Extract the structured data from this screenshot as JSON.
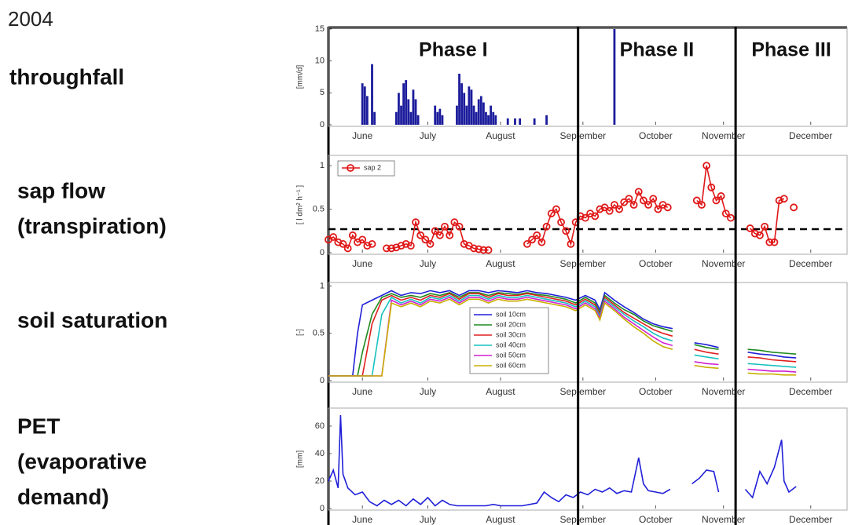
{
  "year": "2004",
  "row_labels": [
    [
      "throughfall"
    ],
    [
      "sap flow",
      "(transpiration)"
    ],
    [
      "soil saturation"
    ],
    [
      "PET",
      "(evaporative",
      "demand)"
    ]
  ],
  "phases": [
    "Phase I",
    "Phase II",
    "Phase III"
  ],
  "phase_boundaries": [
    255,
    320
  ],
  "chart_data": [
    {
      "type": "bar",
      "y_label": "[mm/d]",
      "color": "#1c1c9c",
      "xlim": [
        152,
        366
      ],
      "ylim": [
        0,
        15
      ],
      "yticks": [
        0,
        5,
        10,
        15
      ],
      "xticks": [
        {
          "value": 166,
          "label": "June"
        },
        {
          "value": 193,
          "label": "July"
        },
        {
          "value": 223,
          "label": "August"
        },
        {
          "value": 257,
          "label": "September"
        },
        {
          "value": 287,
          "label": "October"
        },
        {
          "value": 315,
          "label": "November"
        },
        {
          "value": 351,
          "label": "December"
        }
      ],
      "x": [
        166,
        167,
        168,
        170,
        171,
        180,
        181,
        182,
        183,
        184,
        185,
        186,
        187,
        188,
        189,
        196,
        197,
        198,
        199,
        205,
        206,
        207,
        208,
        209,
        210,
        211,
        212,
        213,
        214,
        215,
        216,
        217,
        218,
        219,
        220,
        221,
        226,
        229,
        231,
        237,
        242,
        270
      ],
      "values": [
        6.5,
        6,
        4.5,
        9.5,
        2,
        2,
        5,
        3,
        6.5,
        7,
        4,
        2,
        5.5,
        4,
        1.5,
        3,
        2,
        2.5,
        1.5,
        3,
        8,
        6.5,
        5,
        3,
        6,
        5.5,
        3,
        2,
        4,
        4.5,
        3.5,
        2,
        1.5,
        3,
        2,
        1.5,
        1,
        1,
        1,
        1,
        1.5,
        15
      ]
    },
    {
      "type": "line",
      "y_label": "[ l dm² h⁻¹ ]",
      "markers": true,
      "legend": "upper left",
      "threshold": 0.27,
      "xlim": [
        152,
        366
      ],
      "ylim": [
        0,
        1.1
      ],
      "yticks": [
        0,
        0.5,
        1
      ],
      "xticks": [
        {
          "value": 166,
          "label": "June"
        },
        {
          "value": 193,
          "label": "July"
        },
        {
          "value": 223,
          "label": "August"
        },
        {
          "value": 257,
          "label": "September"
        },
        {
          "value": 287,
          "label": "October"
        },
        {
          "value": 315,
          "label": "November"
        },
        {
          "value": 351,
          "label": "December"
        }
      ],
      "x": [
        152,
        154,
        156,
        158,
        160,
        162,
        164,
        166,
        168,
        170,
        172,
        176,
        178,
        180,
        182,
        184,
        186,
        188,
        190,
        192,
        194,
        196,
        198,
        200,
        202,
        204,
        206,
        208,
        210,
        212,
        214,
        216,
        218,
        225,
        234,
        236,
        238,
        240,
        242,
        244,
        246,
        248,
        250,
        252,
        254,
        256,
        258,
        260,
        262,
        264,
        266,
        268,
        270,
        272,
        274,
        276,
        278,
        280,
        282,
        284,
        286,
        288,
        290,
        292,
        297,
        304,
        306,
        308,
        310,
        312,
        314,
        316,
        318,
        321,
        326,
        328,
        330,
        332,
        334,
        336,
        338,
        340,
        342,
        344
      ],
      "series": [
        {
          "name": "sap 2",
          "color": "#e01818",
          "values": [
            0.15,
            0.18,
            0.12,
            0.1,
            0.05,
            0.2,
            0.12,
            0.15,
            0.08,
            0.1,
            null,
            0.05,
            0.05,
            0.06,
            0.08,
            0.1,
            0.08,
            0.35,
            0.2,
            0.15,
            0.1,
            0.25,
            0.2,
            0.3,
            0.2,
            0.35,
            0.3,
            0.1,
            0.08,
            0.05,
            0.04,
            0.03,
            0.03,
            null,
            0.1,
            0.15,
            0.2,
            0.12,
            0.3,
            0.45,
            0.5,
            0.35,
            0.25,
            0.1,
            0.35,
            0.42,
            0.4,
            0.45,
            0.42,
            0.5,
            0.52,
            0.48,
            0.55,
            0.5,
            0.58,
            0.62,
            0.55,
            0.7,
            0.6,
            0.55,
            0.62,
            0.5,
            0.55,
            0.52,
            null,
            0.6,
            0.55,
            1.0,
            0.75,
            0.6,
            0.65,
            0.45,
            0.4,
            null,
            0.28,
            0.22,
            0.2,
            0.3,
            0.12,
            0.12,
            0.6,
            0.62,
            null,
            0.52
          ]
        }
      ]
    },
    {
      "type": "line",
      "y_label": "[-]",
      "legend": "center",
      "xlim": [
        152,
        366
      ],
      "ylim": [
        0,
        1.02
      ],
      "yticks": [
        0,
        0.5,
        1
      ],
      "xticks": [
        {
          "value": 166,
          "label": "June"
        },
        {
          "value": 193,
          "label": "July"
        },
        {
          "value": 223,
          "label": "August"
        },
        {
          "value": 257,
          "label": "September"
        },
        {
          "value": 287,
          "label": "October"
        },
        {
          "value": 315,
          "label": "November"
        },
        {
          "value": 351,
          "label": "December"
        }
      ],
      "x": [
        152,
        157,
        162,
        164,
        166,
        170,
        174,
        178,
        182,
        186,
        190,
        194,
        198,
        202,
        206,
        210,
        214,
        218,
        222,
        226,
        230,
        234,
        238,
        242,
        246,
        250,
        254,
        258,
        262,
        264,
        266,
        270,
        274,
        278,
        282,
        286,
        290,
        294,
        298,
        303,
        308,
        313,
        318,
        325,
        330,
        335,
        340,
        345
      ],
      "series": [
        {
          "name": "soil 10cm",
          "color": "#2020d8",
          "values": [
            0.05,
            0.05,
            0.05,
            0.5,
            0.8,
            0.85,
            0.9,
            0.95,
            0.9,
            0.93,
            0.92,
            0.95,
            0.93,
            0.95,
            0.9,
            0.95,
            0.95,
            0.93,
            0.95,
            0.94,
            0.93,
            0.95,
            0.93,
            0.92,
            0.9,
            0.88,
            0.85,
            0.9,
            0.85,
            0.75,
            0.93,
            0.85,
            0.78,
            0.72,
            0.65,
            0.6,
            0.57,
            0.55,
            null,
            0.4,
            0.38,
            0.35,
            null,
            0.3,
            0.28,
            0.27,
            0.25,
            0.24
          ]
        },
        {
          "name": "soil 20cm",
          "color": "#1f8a1f",
          "values": [
            0.05,
            0.05,
            0.05,
            0.05,
            0.3,
            0.7,
            0.88,
            0.92,
            0.88,
            0.9,
            0.88,
            0.92,
            0.9,
            0.93,
            0.88,
            0.93,
            0.93,
            0.9,
            0.93,
            0.92,
            0.91,
            0.93,
            0.91,
            0.9,
            0.88,
            0.86,
            0.82,
            0.88,
            0.82,
            0.72,
            0.9,
            0.82,
            0.75,
            0.7,
            0.63,
            0.58,
            0.55,
            0.52,
            null,
            0.38,
            0.35,
            0.33,
            null,
            0.33,
            0.32,
            0.3,
            0.29,
            0.28
          ]
        },
        {
          "name": "soil 30cm",
          "color": "#e02020",
          "values": [
            0.05,
            0.05,
            0.05,
            0.05,
            0.05,
            0.6,
            0.85,
            0.9,
            0.85,
            0.88,
            0.85,
            0.9,
            0.88,
            0.92,
            0.86,
            0.92,
            0.92,
            0.88,
            0.92,
            0.9,
            0.9,
            0.92,
            0.9,
            0.88,
            0.86,
            0.84,
            0.8,
            0.86,
            0.8,
            0.7,
            0.88,
            0.8,
            0.72,
            0.66,
            0.6,
            0.54,
            0.5,
            0.47,
            null,
            0.33,
            0.3,
            0.28,
            null,
            0.25,
            0.24,
            0.22,
            0.21,
            0.2
          ]
        },
        {
          "name": "soil 40cm",
          "color": "#18c0c0",
          "values": [
            0.05,
            0.05,
            0.05,
            0.05,
            0.05,
            0.05,
            0.7,
            0.88,
            0.82,
            0.86,
            0.82,
            0.88,
            0.86,
            0.9,
            0.84,
            0.9,
            0.9,
            0.86,
            0.9,
            0.88,
            0.88,
            0.9,
            0.88,
            0.86,
            0.84,
            0.82,
            0.78,
            0.84,
            0.78,
            0.68,
            0.86,
            0.78,
            0.7,
            0.63,
            0.57,
            0.5,
            0.45,
            0.42,
            null,
            0.27,
            0.25,
            0.23,
            null,
            0.18,
            0.17,
            0.16,
            0.15,
            0.14
          ]
        },
        {
          "name": "soil 50cm",
          "color": "#d020d0",
          "values": [
            0.05,
            0.05,
            0.05,
            0.05,
            0.05,
            0.05,
            0.05,
            0.85,
            0.8,
            0.84,
            0.8,
            0.86,
            0.84,
            0.88,
            0.82,
            0.88,
            0.88,
            0.84,
            0.88,
            0.86,
            0.86,
            0.88,
            0.86,
            0.84,
            0.82,
            0.8,
            0.76,
            0.82,
            0.76,
            0.66,
            0.84,
            0.76,
            0.67,
            0.6,
            0.53,
            0.46,
            0.4,
            0.37,
            null,
            0.2,
            0.18,
            0.17,
            null,
            0.12,
            0.11,
            0.1,
            0.1,
            0.09
          ]
        },
        {
          "name": "soil 60cm",
          "color": "#c8b000",
          "values": [
            0.05,
            0.05,
            0.05,
            0.05,
            0.05,
            0.05,
            0.05,
            0.82,
            0.78,
            0.82,
            0.78,
            0.84,
            0.82,
            0.86,
            0.8,
            0.86,
            0.86,
            0.82,
            0.86,
            0.84,
            0.84,
            0.86,
            0.84,
            0.82,
            0.8,
            0.78,
            0.74,
            0.8,
            0.74,
            0.64,
            0.82,
            0.74,
            0.65,
            0.57,
            0.5,
            0.42,
            0.36,
            0.33,
            null,
            0.16,
            0.14,
            0.13,
            null,
            0.08,
            0.07,
            0.07,
            0.06,
            0.06
          ]
        }
      ]
    },
    {
      "type": "line",
      "y_label": "[mm]",
      "color": "#2020d8",
      "xlim": [
        152,
        366
      ],
      "ylim": [
        0,
        72
      ],
      "yticks": [
        0,
        20,
        40,
        60
      ],
      "xticks": [
        {
          "value": 166,
          "label": "June"
        },
        {
          "value": 193,
          "label": "July"
        },
        {
          "value": 223,
          "label": "August"
        },
        {
          "value": 257,
          "label": "September"
        },
        {
          "value": 287,
          "label": "October"
        },
        {
          "value": 315,
          "label": "November"
        },
        {
          "value": 351,
          "label": "December"
        }
      ],
      "x": [
        152,
        154,
        156,
        157,
        158,
        160,
        163,
        166,
        169,
        172,
        175,
        178,
        181,
        184,
        187,
        190,
        193,
        196,
        199,
        202,
        205,
        208,
        211,
        214,
        217,
        220,
        223,
        226,
        229,
        232,
        235,
        238,
        241,
        244,
        247,
        250,
        253,
        256,
        259,
        262,
        265,
        268,
        271,
        274,
        277,
        280,
        282,
        284,
        287,
        290,
        293,
        297,
        302,
        305,
        308,
        311,
        313,
        318,
        324,
        327,
        330,
        333,
        336,
        339,
        340,
        342,
        345
      ],
      "values": [
        20,
        28,
        15,
        68,
        25,
        15,
        10,
        12,
        5,
        2,
        6,
        3,
        6,
        2,
        7,
        3,
        8,
        2,
        6,
        3,
        2,
        2,
        2,
        2,
        2,
        3,
        2,
        2,
        2,
        2,
        3,
        4,
        12,
        8,
        5,
        10,
        8,
        12,
        10,
        14,
        12,
        15,
        11,
        13,
        12,
        37,
        18,
        13,
        12,
        11,
        14,
        null,
        18,
        22,
        28,
        27,
        12,
        null,
        14,
        8,
        27,
        18,
        30,
        50,
        20,
        12,
        16
      ]
    }
  ]
}
